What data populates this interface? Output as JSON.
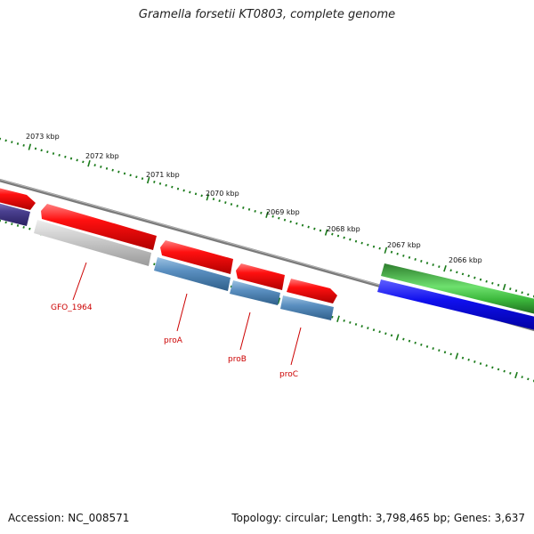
{
  "title": "Gramella forsetii KT0803, complete genome",
  "footer": {
    "accession": "Accession: NC_008571",
    "summary": "Topology: circular; Length: 3,798,465 bp; Genes: 3,637"
  },
  "scale": {
    "labels": [
      "2073 kbp",
      "2072 kbp",
      "2071 kbp",
      "2070 kbp",
      "2069 kbp",
      "2068 kbp",
      "2067 kbp",
      "2066 kbp"
    ],
    "tick_color": "#1a7a1a"
  },
  "gene_labels": [
    "GFO_1964",
    "proA",
    "proB",
    "proC"
  ],
  "colors": {
    "forward_cds": "#ee0000",
    "reverse_cds": "#4a7fb0",
    "gray_feature": "#c0c0c0",
    "green_feature": "#2a8a2a",
    "blue_feature": "#1010ee",
    "purple_feature": "#4a4090",
    "backbone": "#808080",
    "label_color": "#cc0000"
  }
}
